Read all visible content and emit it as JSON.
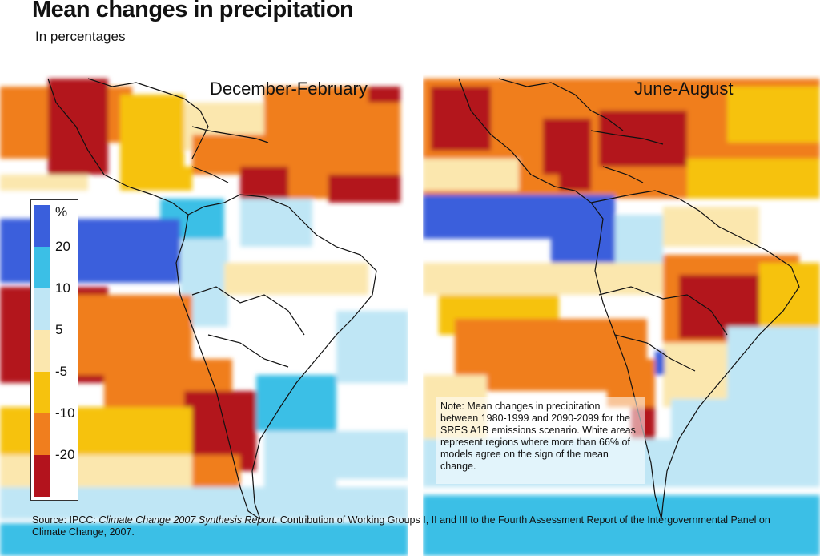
{
  "title": "Mean changes in precipitation",
  "subtitle": "In percentages",
  "panels": [
    {
      "label": "December-February"
    },
    {
      "label": "June-August"
    }
  ],
  "legend": {
    "unit": "%",
    "labels": [
      "20",
      "10",
      "5",
      "-5",
      "-10",
      "-20"
    ],
    "colors": [
      "#3a5fdc",
      "#3bbfe6",
      "#bfe6f5",
      "#fbe7ae",
      "#f6c20e",
      "#f07e1e",
      "#b3131d"
    ]
  },
  "note": "Note: Mean changes in precipitation between 1980-1999 and 2090-2099 for the SRES A1B emissions scenario. White areas represent regions where more than 66% of models agree on the sign of the mean change.",
  "source": {
    "prefix": "Source: IPCC: ",
    "report": "Climate Change 2007 Synthesis Report",
    "suffix": ". Contribution of Working Groups I, II and III to the Fourth Assessment Report of the Intergovernmental Panel on Climate Change, 2007."
  },
  "colors": {
    "dark_blue": "#3a5fdc",
    "blue": "#3bbfe6",
    "light_blue": "#bfe6f5",
    "cream": "#fbe7ae",
    "yellow": "#f6c20e",
    "orange": "#f07e1e",
    "dark_red": "#b3131d"
  }
}
